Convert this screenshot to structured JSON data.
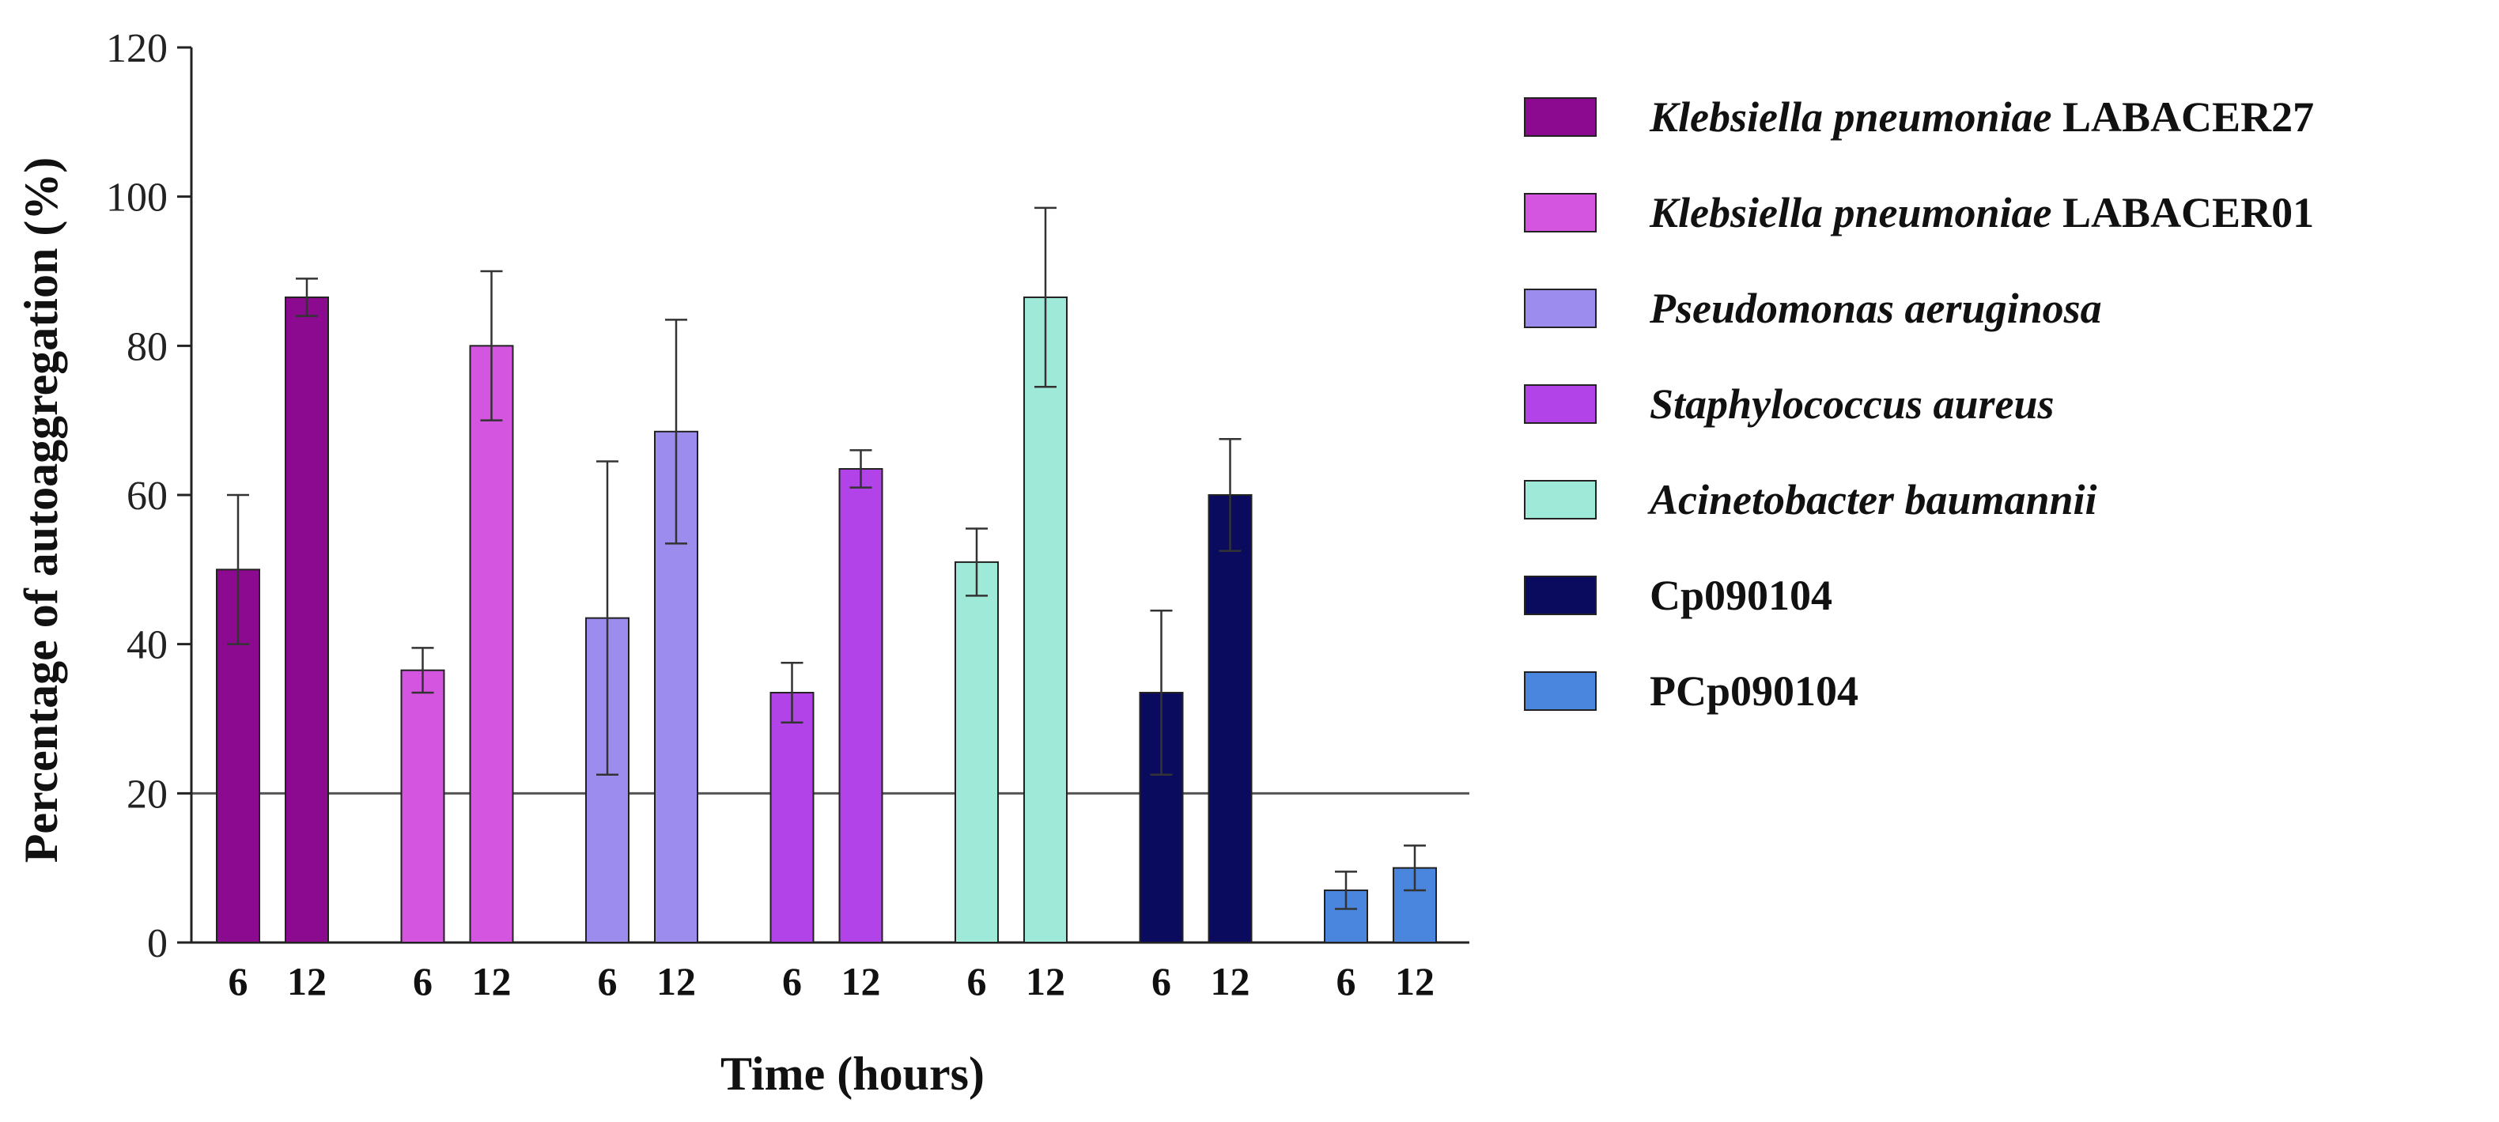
{
  "chart_data": {
    "type": "bar",
    "title": "",
    "xlabel": "Time (hours)",
    "ylabel": "Percentage of autoaggregation (%)",
    "ylim": [
      0,
      120
    ],
    "yticks": [
      0,
      20,
      40,
      60,
      80,
      100,
      120
    ],
    "reference_line": 20,
    "time_labels": [
      "6",
      "12"
    ],
    "groups": [
      {
        "name_italic": "Klebsiella pneumoniae",
        "name_plain": " LABACER27",
        "color": "#8B0A8F",
        "values": [
          50,
          86.5
        ],
        "errors": [
          10,
          2.5
        ]
      },
      {
        "name_italic": "Klebsiella pneumoniae",
        "name_plain": " LABACER01",
        "color": "#D455DF",
        "values": [
          36.5,
          80
        ],
        "errors": [
          3,
          10
        ]
      },
      {
        "name_italic": "Pseudomonas aeruginosa",
        "name_plain": "",
        "color": "#9C8CEE",
        "values": [
          43.5,
          68.5
        ],
        "errors": [
          21,
          15
        ]
      },
      {
        "name_italic": "Staphylococcus aureus",
        "name_plain": "",
        "color": "#B143E8",
        "values": [
          33.5,
          63.5
        ],
        "errors": [
          4,
          2.5
        ]
      },
      {
        "name_italic": "Acinetobacter baumannii",
        "name_plain": "",
        "color": "#9FE9D8",
        "values": [
          51,
          86.5
        ],
        "errors": [
          4.5,
          12
        ]
      },
      {
        "name_italic": "",
        "name_plain": "Cp090104",
        "color": "#0A0B5E",
        "values": [
          33.5,
          60
        ],
        "errors": [
          11,
          7.5
        ]
      },
      {
        "name_italic": "",
        "name_plain": "PCp090104",
        "color": "#4A86DE",
        "values": [
          7,
          10
        ],
        "errors": [
          2.5,
          3
        ]
      }
    ]
  }
}
